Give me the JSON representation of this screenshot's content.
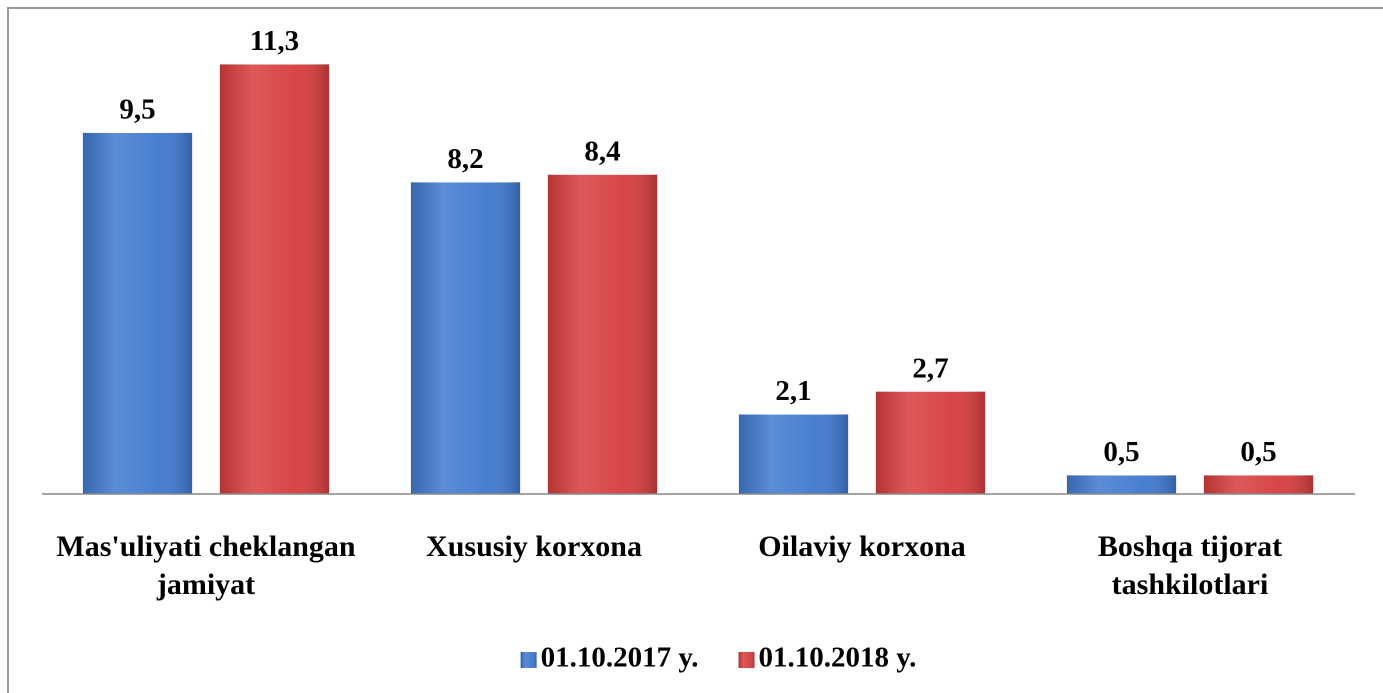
{
  "chart_data": {
    "type": "bar",
    "categories": [
      "Mas'uliyati cheklangan jamiyat",
      "Xususiy korxona",
      "Oilaviy korxona",
      "Boshqa tijorat tashkilotlari"
    ],
    "series": [
      {
        "name": "01.10.2017 y.",
        "color": "#3f78cf",
        "values": [
          9.5,
          8.2,
          2.1,
          0.5
        ],
        "value_labels": [
          "9,5",
          "8,2",
          "2,1",
          "0,5"
        ]
      },
      {
        "name": "01.10.2018 y.",
        "color": "#d63c3c",
        "values": [
          11.3,
          8.4,
          2.7,
          0.5
        ],
        "value_labels": [
          "11,3",
          "8,4",
          "2,7",
          "0,5"
        ]
      }
    ],
    "legend": "bottom"
  }
}
